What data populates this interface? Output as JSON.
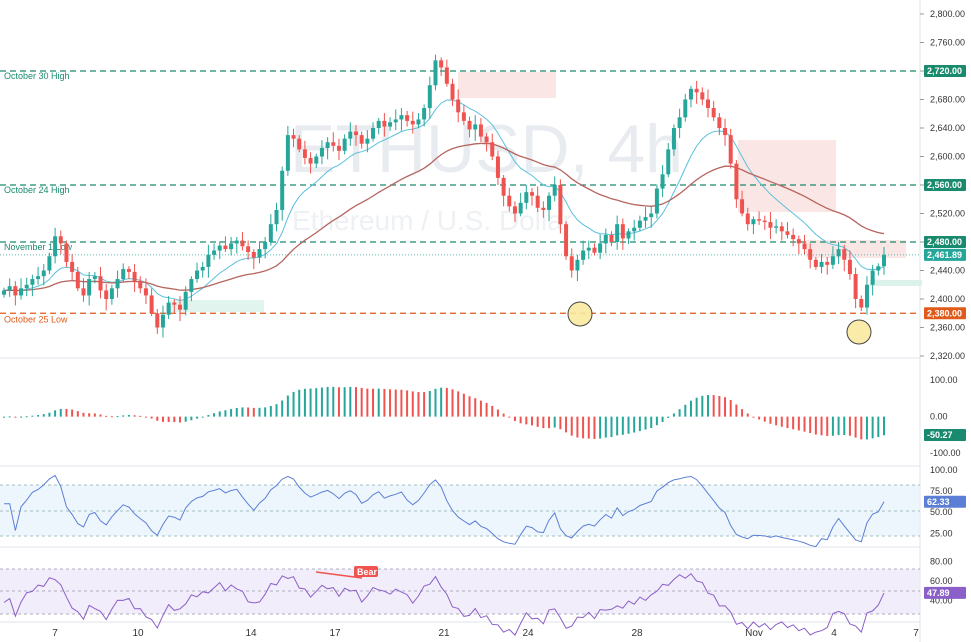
{
  "chart_data": {
    "type": "candlestick",
    "symbol": "ETHUSD",
    "timeframe": "4h",
    "watermark_symbol": "ETHUSD, 4h",
    "watermark_name": "Ethereum / U.S. Dollar",
    "price_axis": {
      "min": 2310,
      "max": 2810,
      "ticks": [
        "2,800.00",
        "2,760.00",
        "2,720.00",
        "2,680.00",
        "2,640.00",
        "2,600.00",
        "2,560.00",
        "2,520.00",
        "2,480.00",
        "2,440.00",
        "2,400.00",
        "2,360.00",
        "2,320.00"
      ]
    },
    "levels": [
      {
        "label": "October 30 High",
        "value": 2720,
        "badge": "2,720.00",
        "color": "#1a8a6e"
      },
      {
        "label": "October 24 High",
        "value": 2560,
        "badge": "2,560.00",
        "color": "#1a8a6e"
      },
      {
        "label": "November 1 Low",
        "value": 2480,
        "badge": "2,480.00",
        "color": "#1a8a6e"
      },
      {
        "label": "October 25 Low",
        "value": 2380,
        "badge": "2,380.00",
        "color": "#e05a1a"
      }
    ],
    "current_price": {
      "value": 2461.89,
      "badge": "2,461.89"
    },
    "x_axis_labels": [
      "7",
      "10",
      "14",
      "17",
      "21",
      "24",
      "28",
      "Nov",
      "4",
      "7"
    ],
    "close_prices": [
      2412,
      2418,
      2405,
      2415,
      2420,
      2428,
      2432,
      2440,
      2460,
      2488,
      2478,
      2452,
      2438,
      2415,
      2405,
      2428,
      2432,
      2412,
      2400,
      2415,
      2428,
      2442,
      2438,
      2425,
      2415,
      2405,
      2380,
      2360,
      2378,
      2395,
      2392,
      2385,
      2410,
      2428,
      2440,
      2445,
      2462,
      2468,
      2475,
      2470,
      2478,
      2482,
      2474,
      2466,
      2458,
      2470,
      2480,
      2505,
      2525,
      2580,
      2630,
      2625,
      2610,
      2598,
      2590,
      2600,
      2612,
      2620,
      2615,
      2608,
      2625,
      2635,
      2630,
      2618,
      2625,
      2640,
      2650,
      2642,
      2648,
      2652,
      2658,
      2650,
      2645,
      2652,
      2668,
      2700,
      2735,
      2725,
      2702,
      2680,
      2662,
      2650,
      2638,
      2645,
      2628,
      2620,
      2600,
      2570,
      2545,
      2530,
      2520,
      2535,
      2550,
      2545,
      2528,
      2525,
      2545,
      2560,
      2505,
      2460,
      2440,
      2455,
      2468,
      2472,
      2465,
      2478,
      2490,
      2480,
      2505,
      2485,
      2495,
      2500,
      2510,
      2515,
      2520,
      2555,
      2575,
      2610,
      2640,
      2655,
      2680,
      2695,
      2690,
      2680,
      2668,
      2655,
      2640,
      2630,
      2590,
      2540,
      2520,
      2505,
      2512,
      2510,
      2508,
      2500,
      2502,
      2495,
      2490,
      2484,
      2478,
      2470,
      2455,
      2445,
      2452,
      2448,
      2460,
      2470,
      2455,
      2435,
      2400,
      2388,
      2420,
      2440,
      2446,
      2462
    ],
    "macd": {
      "current": "-50.27",
      "ticks": [
        "100.00",
        "0.00",
        "-100.00"
      ],
      "min": -130,
      "max": 150
    },
    "rsi": {
      "current": "62.33",
      "ticks": [
        "100.00",
        "75.00",
        "50.00",
        "25.00"
      ],
      "upper": 75,
      "lower": 25,
      "mid": 50
    },
    "stoch": {
      "current": "47.89",
      "ticks": [
        "80.00",
        "60.00",
        "40.00"
      ],
      "label": "Bear",
      "upper": 70,
      "lower": 30
    },
    "annotations": [
      {
        "type": "circle",
        "at": "October 25 Low"
      },
      {
        "type": "circle",
        "at": "November 4 Low"
      }
    ]
  },
  "colors": {
    "up": "#26a69a",
    "down": "#ef5350",
    "ema_fast": "#5bc0de",
    "ema_slow": "#b5655e",
    "rsi_line": "#5b7fd6",
    "stoch_line": "#8a5fc7",
    "level_green": "#1a8a6e",
    "level_red": "#e05a1a"
  }
}
